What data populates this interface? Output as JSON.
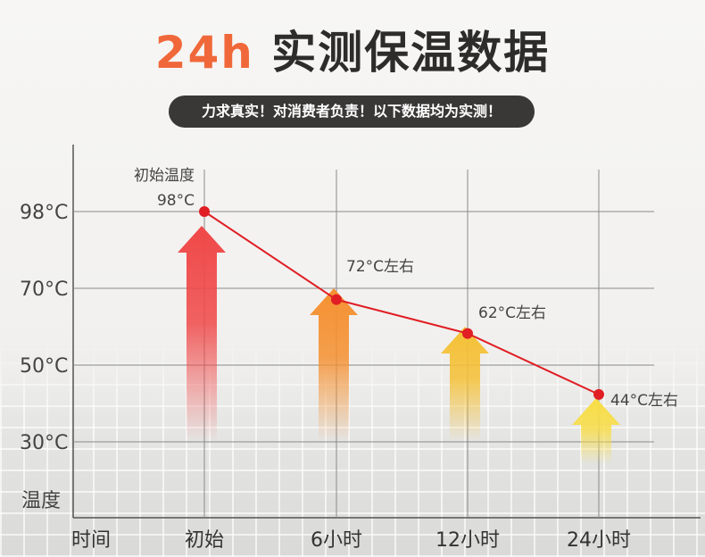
{
  "header": {
    "title_highlight": "24h",
    "title_rest": "实测保温数据",
    "subtitle": "力求真实！对消费者负责！以下数据均为实测！"
  },
  "chart_data": {
    "type": "line",
    "title": "24h 实测保温数据",
    "xlabel": "时间",
    "ylabel": "温度",
    "categories": [
      "初始",
      "6小时",
      "12小时",
      "24小时"
    ],
    "y_ticks": [
      {
        "value": 98,
        "label": "98°C"
      },
      {
        "value": 70,
        "label": "70°C"
      },
      {
        "value": 50,
        "label": "50°C"
      },
      {
        "value": 30,
        "label": "30°C"
      }
    ],
    "series": [
      {
        "values": [
          98,
          72,
          62,
          44
        ],
        "data_labels": [
          "98°C",
          "72°C左右",
          "62°C左右",
          "44°C左右"
        ],
        "color": "#e01e24"
      }
    ],
    "annotations": [
      {
        "text": "初始温度",
        "point_index": 0
      }
    ],
    "arrow_colors": [
      "#f04848",
      "#f59030",
      "#f5c035",
      "#f8dd45"
    ],
    "ylim": [
      30,
      98
    ],
    "grid": true,
    "legend": "none"
  }
}
